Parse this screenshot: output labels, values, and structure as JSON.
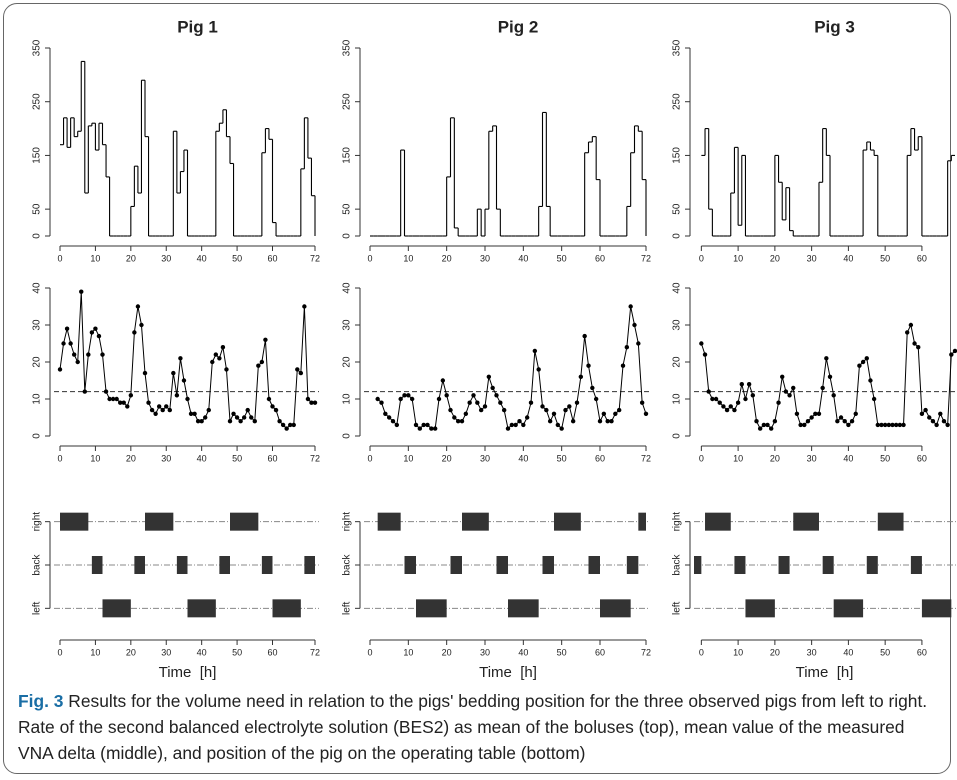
{
  "chart_data": [
    {
      "type": "step",
      "title": "Pig 1",
      "color": "#000000",
      "x": [
        0,
        1,
        2,
        3,
        4,
        5,
        6,
        7,
        8,
        9,
        10,
        11,
        12,
        13,
        14,
        15,
        16,
        17,
        18,
        19,
        20,
        21,
        22,
        23,
        24,
        25,
        26,
        27,
        28,
        29,
        30,
        31,
        32,
        33,
        34,
        35,
        36,
        37,
        38,
        39,
        40,
        41,
        42,
        43,
        44,
        45,
        46,
        47,
        48,
        49,
        50,
        51,
        52,
        53,
        54,
        55,
        56,
        57,
        58,
        59,
        60,
        61,
        62,
        63,
        64,
        65,
        66,
        67,
        68,
        69,
        70,
        71,
        72
      ],
      "values": [
        170,
        220,
        165,
        220,
        185,
        195,
        325,
        80,
        205,
        210,
        160,
        210,
        170,
        110,
        0,
        0,
        0,
        0,
        0,
        0,
        55,
        130,
        80,
        290,
        185,
        0,
        0,
        0,
        0,
        0,
        0,
        0,
        195,
        80,
        120,
        160,
        0,
        0,
        0,
        0,
        0,
        0,
        0,
        0,
        195,
        210,
        235,
        185,
        135,
        0,
        0,
        0,
        0,
        0,
        0,
        0,
        0,
        155,
        200,
        180,
        25,
        0,
        0,
        0,
        0,
        0,
        0,
        0,
        125,
        220,
        145,
        75,
        0
      ],
      "xlim": [
        0,
        72
      ],
      "xticks": [
        0,
        10,
        20,
        30,
        40,
        50,
        60,
        72
      ],
      "ylim": [
        0,
        350
      ],
      "yticks": [
        0,
        50,
        150,
        250,
        350
      ]
    },
    {
      "type": "step",
      "title": "Pig 2",
      "color": "#000000",
      "x": [
        0,
        1,
        2,
        3,
        4,
        5,
        6,
        7,
        8,
        9,
        10,
        11,
        12,
        13,
        14,
        15,
        16,
        17,
        18,
        19,
        20,
        21,
        22,
        23,
        24,
        25,
        26,
        27,
        28,
        29,
        30,
        31,
        32,
        33,
        34,
        35,
        36,
        37,
        38,
        39,
        40,
        41,
        42,
        43,
        44,
        45,
        46,
        47,
        48,
        49,
        50,
        51,
        52,
        53,
        54,
        55,
        56,
        57,
        58,
        59,
        60,
        61,
        62,
        63,
        64,
        65,
        66,
        67,
        68,
        69,
        70,
        71,
        72
      ],
      "values": [
        0,
        0,
        0,
        0,
        0,
        0,
        0,
        0,
        160,
        0,
        0,
        0,
        0,
        0,
        0,
        0,
        0,
        0,
        0,
        0,
        110,
        220,
        15,
        0,
        0,
        0,
        0,
        0,
        50,
        0,
        50,
        195,
        205,
        50,
        0,
        0,
        0,
        0,
        0,
        0,
        0,
        0,
        0,
        0,
        55,
        230,
        55,
        0,
        0,
        0,
        0,
        0,
        0,
        0,
        0,
        0,
        155,
        175,
        185,
        105,
        0,
        0,
        0,
        0,
        0,
        0,
        0,
        55,
        155,
        205,
        195,
        105,
        0
      ],
      "xlim": [
        0,
        72
      ],
      "xticks": [
        0,
        10,
        20,
        30,
        40,
        50,
        60,
        72
      ],
      "ylim": [
        0,
        350
      ],
      "yticks": [
        0,
        50,
        150,
        250,
        350
      ]
    },
    {
      "type": "step",
      "title": "Pig 3",
      "color": "#000000",
      "x": [
        0,
        1,
        2,
        3,
        4,
        5,
        6,
        7,
        8,
        9,
        10,
        11,
        12,
        13,
        14,
        15,
        16,
        17,
        18,
        19,
        20,
        21,
        22,
        23,
        24,
        25,
        26,
        27,
        28,
        29,
        30,
        31,
        32,
        33,
        34,
        35,
        36,
        37,
        38,
        39,
        40,
        41,
        42,
        43,
        44,
        45,
        46,
        47,
        48,
        49,
        50,
        51,
        52,
        53,
        54,
        55,
        56,
        57,
        58,
        59,
        60,
        61,
        62,
        63,
        64,
        65,
        66,
        67,
        68,
        69
      ],
      "values": [
        150,
        200,
        50,
        0,
        0,
        0,
        0,
        0,
        80,
        165,
        20,
        150,
        0,
        0,
        0,
        0,
        0,
        0,
        0,
        0,
        150,
        100,
        30,
        90,
        10,
        0,
        0,
        0,
        0,
        0,
        0,
        0,
        100,
        200,
        150,
        0,
        0,
        0,
        0,
        0,
        0,
        0,
        0,
        0,
        160,
        175,
        160,
        150,
        0,
        0,
        0,
        0,
        0,
        0,
        0,
        0,
        150,
        200,
        160,
        185,
        0,
        0,
        0,
        0,
        0,
        0,
        0,
        140,
        150,
        150
      ],
      "xlim": [
        -2,
        69
      ],
      "xticks": [
        0,
        10,
        20,
        30,
        40,
        50,
        60
      ],
      "ylim": [
        0,
        350
      ],
      "yticks": [
        0,
        50,
        150,
        250,
        350
      ]
    },
    {
      "type": "line",
      "color": "#000000",
      "reference_line": 12,
      "x": [
        0,
        1,
        2,
        3,
        4,
        5,
        6,
        7,
        8,
        9,
        10,
        11,
        12,
        13,
        14,
        15,
        16,
        17,
        18,
        19,
        20,
        21,
        22,
        23,
        24,
        25,
        26,
        27,
        28,
        29,
        30,
        31,
        32,
        33,
        34,
        35,
        36,
        37,
        38,
        39,
        40,
        41,
        42,
        43,
        44,
        45,
        46,
        47,
        48,
        49,
        50,
        51,
        52,
        53,
        54,
        55,
        56,
        57,
        58,
        59,
        60,
        61,
        62,
        63,
        64,
        65,
        66,
        67,
        68,
        69,
        70,
        71,
        72
      ],
      "values": [
        18,
        25,
        29,
        25,
        22,
        20,
        39,
        12,
        22,
        28,
        29,
        27,
        22,
        12,
        10,
        10,
        10,
        9,
        9,
        8,
        11,
        28,
        35,
        30,
        17,
        9,
        7,
        6,
        8,
        7,
        8,
        7,
        17,
        11,
        21,
        15,
        10,
        6,
        6,
        4,
        4,
        5,
        7,
        20,
        22,
        21,
        24,
        18,
        4,
        6,
        5,
        4,
        5,
        7,
        5,
        4,
        19,
        20,
        26,
        10,
        8,
        7,
        4,
        3,
        2,
        3,
        3,
        18,
        17,
        35,
        10,
        9,
        9
      ],
      "xlim": [
        0,
        72
      ],
      "xticks": [
        0,
        10,
        20,
        30,
        40,
        50,
        60,
        72
      ],
      "ylim": [
        0,
        40
      ],
      "yticks": [
        0,
        10,
        20,
        30,
        40
      ]
    },
    {
      "type": "line",
      "color": "#000000",
      "reference_line": 12,
      "x": [
        2,
        3,
        4,
        5,
        6,
        7,
        8,
        9,
        10,
        11,
        12,
        13,
        14,
        15,
        16,
        17,
        18,
        19,
        20,
        21,
        22,
        23,
        24,
        25,
        26,
        27,
        28,
        29,
        30,
        31,
        32,
        33,
        34,
        35,
        36,
        37,
        38,
        39,
        40,
        41,
        42,
        43,
        44,
        45,
        46,
        47,
        48,
        49,
        50,
        51,
        52,
        53,
        54,
        55,
        56,
        57,
        58,
        59,
        60,
        61,
        62,
        63,
        64,
        65,
        66,
        67,
        68,
        69,
        70,
        71,
        72
      ],
      "values": [
        10,
        9,
        6,
        5,
        4,
        3,
        10,
        11,
        11,
        10,
        3,
        2,
        3,
        3,
        2,
        2,
        10,
        15,
        11,
        7,
        5,
        4,
        4,
        6,
        9,
        11,
        9,
        7,
        8,
        16,
        13,
        11,
        9,
        7,
        2,
        3,
        3,
        4,
        3,
        5,
        9,
        23,
        18,
        8,
        7,
        4,
        6,
        3,
        2,
        7,
        8,
        4,
        9,
        16,
        27,
        19,
        13,
        10,
        4,
        6,
        4,
        4,
        6,
        7,
        19,
        24,
        35,
        30,
        25,
        9,
        6
      ],
      "xlim": [
        0,
        72
      ],
      "xticks": [
        0,
        10,
        20,
        30,
        40,
        50,
        60,
        72
      ],
      "ylim": [
        0,
        40
      ],
      "yticks": [
        0,
        10,
        20,
        30,
        40
      ]
    },
    {
      "type": "line",
      "color": "#000000",
      "reference_line": 12,
      "x": [
        0,
        1,
        2,
        3,
        4,
        5,
        6,
        7,
        8,
        9,
        10,
        11,
        12,
        13,
        14,
        15,
        16,
        17,
        18,
        19,
        20,
        21,
        22,
        23,
        24,
        25,
        26,
        27,
        28,
        29,
        30,
        31,
        32,
        33,
        34,
        35,
        36,
        37,
        38,
        39,
        40,
        41,
        42,
        43,
        44,
        45,
        46,
        47,
        48,
        49,
        50,
        51,
        52,
        53,
        54,
        55,
        56,
        57,
        58,
        59,
        60,
        61,
        62,
        63,
        64,
        65,
        66,
        67,
        68,
        69
      ],
      "values": [
        25,
        22,
        12,
        10,
        10,
        9,
        8,
        7,
        8,
        7,
        9,
        14,
        10,
        14,
        11,
        4,
        2,
        3,
        3,
        2,
        4,
        9,
        16,
        12,
        11,
        13,
        6,
        3,
        3,
        4,
        5,
        6,
        6,
        13,
        21,
        16,
        11,
        4,
        5,
        4,
        3,
        4,
        6,
        19,
        20,
        21,
        15,
        10,
        3,
        3,
        3,
        3,
        3,
        3,
        3,
        3,
        28,
        30,
        25,
        24,
        6,
        7,
        5,
        4,
        3,
        6,
        4,
        3,
        22,
        23
      ],
      "xlim": [
        -2,
        69
      ],
      "xticks": [
        0,
        10,
        20,
        30,
        40,
        50,
        60
      ],
      "ylim": [
        0,
        40
      ],
      "yticks": [
        0,
        10,
        20,
        30,
        40
      ]
    },
    {
      "type": "timeline",
      "xlabel": "Time  [h]",
      "color": "#333333",
      "categories": [
        "right",
        "back",
        "left"
      ],
      "bars": [
        {
          "category": "right",
          "start": 0,
          "end": 8
        },
        {
          "category": "right",
          "start": 24,
          "end": 32
        },
        {
          "category": "right",
          "start": 48,
          "end": 56
        },
        {
          "category": "back",
          "start": 9,
          "end": 12
        },
        {
          "category": "back",
          "start": 21,
          "end": 24
        },
        {
          "category": "back",
          "start": 33,
          "end": 36
        },
        {
          "category": "back",
          "start": 45,
          "end": 48
        },
        {
          "category": "back",
          "start": 57,
          "end": 60
        },
        {
          "category": "back",
          "start": 69,
          "end": 72
        },
        {
          "category": "left",
          "start": 12,
          "end": 20
        },
        {
          "category": "left",
          "start": 36,
          "end": 44
        },
        {
          "category": "left",
          "start": 60,
          "end": 68
        }
      ],
      "xlim": [
        0,
        72
      ],
      "xticks": [
        0,
        10,
        20,
        30,
        40,
        50,
        60,
        72
      ]
    },
    {
      "type": "timeline",
      "xlabel": "Time  [h]",
      "color": "#333333",
      "categories": [
        "right",
        "back",
        "left"
      ],
      "bars": [
        {
          "category": "right",
          "start": 2,
          "end": 8
        },
        {
          "category": "right",
          "start": 24,
          "end": 31
        },
        {
          "category": "right",
          "start": 48,
          "end": 55
        },
        {
          "category": "right",
          "start": 70,
          "end": 72
        },
        {
          "category": "back",
          "start": 9,
          "end": 12
        },
        {
          "category": "back",
          "start": 21,
          "end": 24
        },
        {
          "category": "back",
          "start": 33,
          "end": 36
        },
        {
          "category": "back",
          "start": 45,
          "end": 48
        },
        {
          "category": "back",
          "start": 57,
          "end": 60
        },
        {
          "category": "back",
          "start": 67,
          "end": 70
        },
        {
          "category": "left",
          "start": 12,
          "end": 20
        },
        {
          "category": "left",
          "start": 36,
          "end": 44
        },
        {
          "category": "left",
          "start": 60,
          "end": 68
        }
      ],
      "xlim": [
        0,
        72
      ],
      "xticks": [
        0,
        10,
        20,
        30,
        40,
        50,
        60,
        72
      ]
    },
    {
      "type": "timeline",
      "xlabel": "Time  [h]",
      "color": "#333333",
      "categories": [
        "right",
        "back",
        "left"
      ],
      "bars": [
        {
          "category": "right",
          "start": 1,
          "end": 8
        },
        {
          "category": "right",
          "start": 25,
          "end": 32
        },
        {
          "category": "right",
          "start": 48,
          "end": 55
        },
        {
          "category": "back",
          "start": -2,
          "end": 0
        },
        {
          "category": "back",
          "start": 9,
          "end": 12
        },
        {
          "category": "back",
          "start": 21,
          "end": 24
        },
        {
          "category": "back",
          "start": 33,
          "end": 36
        },
        {
          "category": "back",
          "start": 45,
          "end": 48
        },
        {
          "category": "back",
          "start": 57,
          "end": 60
        },
        {
          "category": "left",
          "start": 12,
          "end": 20
        },
        {
          "category": "left",
          "start": 36,
          "end": 44
        },
        {
          "category": "left",
          "start": 60,
          "end": 68
        }
      ],
      "xlim": [
        -2,
        69
      ],
      "xticks": [
        0,
        10,
        20,
        30,
        40,
        50,
        60
      ]
    }
  ],
  "caption": {
    "label": "Fig. 3",
    "text": "Results for the volume need in relation to the pigs' bedding position for the three observed pigs from left to right. Rate of the second balanced electrolyte solution (BES2) as mean of the boluses (top), mean value of the measured VNA delta (middle), and position of the pig on the operating table (bottom)"
  }
}
